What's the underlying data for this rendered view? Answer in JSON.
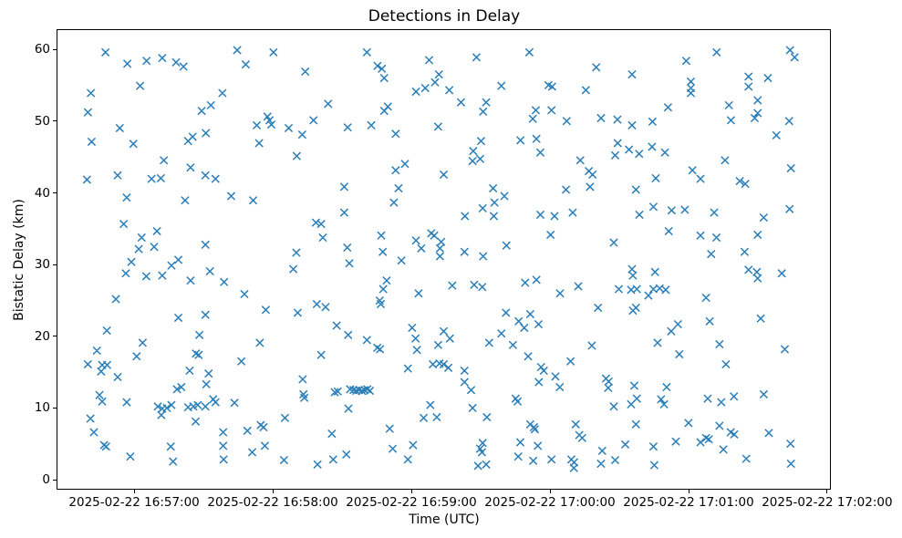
{
  "figure": {
    "title": "Detections in Delay",
    "xlabel": "Time (UTC)",
    "ylabel": "Bistatic Delay (km)"
  },
  "chart_data": {
    "type": "scatter",
    "title": "Detections in Delay",
    "xlabel": "Time (UTC)",
    "ylabel": "Bistatic Delay (km)",
    "marker": "x",
    "marker_color": "#1f77b4",
    "background": "#ffffff",
    "grid": false,
    "legend": null,
    "x_unit": "seconds after 2025-02-22 16:57:00 UTC",
    "xlim_s": [
      -33.2,
      301.6
    ],
    "ylim": [
      -1.4,
      62.7
    ],
    "x_ticks": [
      {
        "s": 0,
        "label": "2025-02-22 16:57:00"
      },
      {
        "s": 60,
        "label": "2025-02-22 16:58:00"
      },
      {
        "s": 120,
        "label": "2025-02-22 16:59:00"
      },
      {
        "s": 180,
        "label": "2025-02-22 17:00:00"
      },
      {
        "s": 240,
        "label": "2025-02-22 17:01:00"
      },
      {
        "s": 300,
        "label": "2025-02-22 17:02:00"
      }
    ],
    "y_ticks": [
      0,
      10,
      20,
      30,
      40,
      50,
      60
    ],
    "points": [
      [
        -12.4,
        59.6
      ],
      [
        -2.9,
        58.0
      ],
      [
        5.4,
        58.4
      ],
      [
        12.2,
        58.8
      ],
      [
        18.2,
        58.2
      ],
      [
        21.4,
        57.6
      ],
      [
        44.7,
        59.9
      ],
      [
        48.4,
        57.9
      ],
      [
        2.6,
        54.9
      ],
      [
        -18.7,
        53.9
      ],
      [
        38.3,
        53.9
      ],
      [
        -20.0,
        51.2
      ],
      [
        33.3,
        52.2
      ],
      [
        29.3,
        51.4
      ],
      [
        -6.2,
        49.0
      ],
      [
        31.1,
        48.3
      ],
      [
        23.4,
        47.2
      ],
      [
        25.4,
        47.8
      ],
      [
        -18.4,
        47.1
      ],
      [
        -0.3,
        46.8
      ],
      [
        12.9,
        44.5
      ],
      [
        24.5,
        43.5
      ],
      [
        -7.1,
        42.4
      ],
      [
        -20.4,
        41.8
      ],
      [
        7.6,
        41.9
      ],
      [
        11.6,
        42.0
      ],
      [
        30.9,
        42.4
      ],
      [
        35.3,
        41.9
      ],
      [
        60.4,
        59.6
      ],
      [
        100.9,
        59.6
      ],
      [
        74.2,
        56.9
      ],
      [
        105.5,
        57.7
      ],
      [
        107.4,
        57.3
      ],
      [
        108.4,
        56.0
      ],
      [
        127.9,
        58.5
      ],
      [
        132.1,
        56.5
      ],
      [
        130.4,
        55.4
      ],
      [
        126.2,
        54.6
      ],
      [
        122.2,
        54.1
      ],
      [
        84.1,
        52.4
      ],
      [
        110.0,
        52.0
      ],
      [
        108.4,
        51.4
      ],
      [
        57.8,
        50.6
      ],
      [
        58.7,
        50.1
      ],
      [
        53.2,
        49.4
      ],
      [
        59.5,
        49.5
      ],
      [
        77.8,
        50.1
      ],
      [
        67.0,
        49.0
      ],
      [
        92.6,
        49.1
      ],
      [
        102.8,
        49.4
      ],
      [
        72.9,
        48.1
      ],
      [
        113.4,
        48.2
      ],
      [
        131.8,
        49.2
      ],
      [
        54.2,
        46.9
      ],
      [
        70.5,
        45.1
      ],
      [
        117.4,
        44.0
      ],
      [
        113.4,
        43.1
      ],
      [
        148.4,
        58.9
      ],
      [
        171.3,
        59.6
      ],
      [
        200.3,
        57.5
      ],
      [
        215.8,
        56.5
      ],
      [
        136.6,
        54.3
      ],
      [
        159.2,
        54.9
      ],
      [
        179.6,
        55.0
      ],
      [
        181.2,
        54.8
      ],
      [
        195.8,
        54.3
      ],
      [
        141.7,
        52.6
      ],
      [
        152.6,
        52.6
      ],
      [
        151.3,
        51.3
      ],
      [
        174.1,
        51.5
      ],
      [
        180.9,
        51.5
      ],
      [
        172.8,
        50.3
      ],
      [
        187.5,
        50.0
      ],
      [
        202.4,
        50.4
      ],
      [
        209.5,
        50.2
      ],
      [
        215.8,
        49.4
      ],
      [
        150.4,
        47.2
      ],
      [
        167.5,
        47.3
      ],
      [
        174.4,
        47.5
      ],
      [
        147.0,
        45.8
      ],
      [
        150.0,
        44.7
      ],
      [
        146.7,
        44.4
      ],
      [
        176.1,
        45.6
      ],
      [
        209.6,
        46.9
      ],
      [
        214.5,
        46.0
      ],
      [
        208.5,
        45.2
      ],
      [
        193.4,
        44.5
      ],
      [
        197.1,
        43.0
      ],
      [
        198.7,
        42.5
      ],
      [
        134.2,
        42.5
      ],
      [
        252.5,
        59.6
      ],
      [
        284.3,
        59.9
      ],
      [
        286.3,
        58.9
      ],
      [
        239.3,
        58.4
      ],
      [
        266.3,
        56.2
      ],
      [
        274.7,
        56.0
      ],
      [
        266.3,
        54.8
      ],
      [
        241.3,
        55.5
      ],
      [
        241.3,
        54.6
      ],
      [
        241.3,
        53.9
      ],
      [
        270.3,
        52.9
      ],
      [
        231.4,
        51.9
      ],
      [
        257.8,
        52.2
      ],
      [
        270.3,
        51.1
      ],
      [
        269.0,
        50.4
      ],
      [
        224.7,
        49.9
      ],
      [
        258.7,
        50.1
      ],
      [
        283.9,
        50.0
      ],
      [
        278.4,
        48.0
      ],
      [
        224.5,
        46.4
      ],
      [
        218.9,
        45.4
      ],
      [
        230.1,
        45.6
      ],
      [
        256.1,
        44.5
      ],
      [
        284.7,
        43.4
      ],
      [
        242.0,
        43.1
      ],
      [
        226.1,
        42.0
      ],
      [
        245.5,
        41.9
      ],
      [
        262.5,
        41.6
      ],
      [
        264.9,
        41.2
      ],
      [
        -3.2,
        39.3
      ],
      [
        22.1,
        38.9
      ],
      [
        42.1,
        39.5
      ],
      [
        -4.5,
        35.6
      ],
      [
        3.3,
        33.7
      ],
      [
        9.9,
        34.6
      ],
      [
        2.0,
        32.1
      ],
      [
        8.7,
        32.4
      ],
      [
        30.9,
        32.7
      ],
      [
        -1.2,
        30.3
      ],
      [
        19.2,
        30.6
      ],
      [
        16.2,
        29.8
      ],
      [
        -3.6,
        28.7
      ],
      [
        5.3,
        28.3
      ],
      [
        12.2,
        28.4
      ],
      [
        24.5,
        27.7
      ],
      [
        32.9,
        29.0
      ],
      [
        39.0,
        27.5
      ],
      [
        47.8,
        25.8
      ],
      [
        -7.9,
        25.1
      ],
      [
        19.2,
        22.5
      ],
      [
        30.9,
        22.9
      ],
      [
        -11.8,
        20.7
      ],
      [
        91.1,
        40.8
      ],
      [
        114.6,
        40.6
      ],
      [
        51.6,
        38.9
      ],
      [
        112.6,
        38.6
      ],
      [
        91.1,
        37.2
      ],
      [
        78.8,
        35.8
      ],
      [
        81.1,
        35.6
      ],
      [
        81.8,
        33.7
      ],
      [
        107.1,
        34.0
      ],
      [
        128.8,
        34.3
      ],
      [
        130.1,
        34.0
      ],
      [
        122.2,
        33.3
      ],
      [
        133.1,
        33.1
      ],
      [
        124.5,
        32.2
      ],
      [
        70.3,
        31.6
      ],
      [
        92.4,
        32.3
      ],
      [
        107.8,
        31.7
      ],
      [
        132.6,
        32.2
      ],
      [
        132.6,
        31.1
      ],
      [
        115.9,
        30.5
      ],
      [
        93.3,
        30.1
      ],
      [
        69.0,
        29.3
      ],
      [
        109.5,
        27.7
      ],
      [
        108.0,
        26.5
      ],
      [
        123.3,
        25.9
      ],
      [
        106.5,
        24.9
      ],
      [
        106.9,
        24.4
      ],
      [
        57.1,
        23.6
      ],
      [
        79.2,
        24.4
      ],
      [
        83.0,
        24.0
      ],
      [
        70.9,
        23.2
      ],
      [
        87.8,
        21.4
      ],
      [
        120.5,
        21.1
      ],
      [
        92.8,
        20.1
      ],
      [
        155.6,
        40.6
      ],
      [
        160.5,
        39.5
      ],
      [
        187.2,
        40.4
      ],
      [
        197.6,
        40.8
      ],
      [
        151.1,
        37.8
      ],
      [
        156.2,
        38.6
      ],
      [
        143.4,
        36.7
      ],
      [
        155.9,
        36.7
      ],
      [
        176.1,
        36.9
      ],
      [
        182.2,
        36.7
      ],
      [
        190.1,
        37.2
      ],
      [
        180.5,
        34.1
      ],
      [
        207.9,
        33.0
      ],
      [
        161.4,
        32.6
      ],
      [
        143.2,
        31.7
      ],
      [
        151.3,
        31.1
      ],
      [
        215.8,
        29.3
      ],
      [
        216.2,
        28.4
      ],
      [
        137.9,
        27.0
      ],
      [
        147.4,
        27.1
      ],
      [
        150.9,
        26.8
      ],
      [
        169.5,
        27.4
      ],
      [
        174.4,
        27.8
      ],
      [
        184.6,
        25.9
      ],
      [
        192.5,
        26.9
      ],
      [
        210.1,
        26.5
      ],
      [
        215.4,
        26.4
      ],
      [
        201.1,
        23.9
      ],
      [
        216.2,
        23.5
      ],
      [
        161.2,
        23.2
      ],
      [
        166.7,
        22.0
      ],
      [
        171.7,
        23.0
      ],
      [
        169.1,
        21.1
      ],
      [
        175.3,
        21.6
      ],
      [
        159.2,
        20.3
      ],
      [
        134.2,
        20.6
      ],
      [
        217.5,
        40.4
      ],
      [
        225.1,
        38.0
      ],
      [
        219.0,
        36.9
      ],
      [
        233.0,
        37.5
      ],
      [
        238.7,
        37.6
      ],
      [
        251.4,
        37.2
      ],
      [
        272.9,
        36.5
      ],
      [
        284.1,
        37.7
      ],
      [
        231.7,
        34.6
      ],
      [
        245.5,
        34.0
      ],
      [
        252.4,
        33.7
      ],
      [
        270.3,
        34.1
      ],
      [
        250.1,
        31.4
      ],
      [
        264.6,
        31.7
      ],
      [
        225.8,
        28.9
      ],
      [
        266.3,
        29.2
      ],
      [
        269.9,
        28.9
      ],
      [
        270.3,
        28.0
      ],
      [
        280.7,
        28.7
      ],
      [
        217.9,
        26.5
      ],
      [
        225.1,
        26.5
      ],
      [
        227.8,
        26.6
      ],
      [
        222.9,
        25.6
      ],
      [
        230.4,
        26.4
      ],
      [
        247.9,
        25.3
      ],
      [
        217.5,
        23.9
      ],
      [
        249.5,
        22.0
      ],
      [
        271.6,
        22.4
      ],
      [
        235.7,
        21.6
      ],
      [
        232.8,
        20.6
      ],
      [
        28.3,
        20.1
      ],
      [
        3.7,
        19.0
      ],
      [
        -16.1,
        17.9
      ],
      [
        1.1,
        17.1
      ],
      [
        26.8,
        17.5
      ],
      [
        28.0,
        17.3
      ],
      [
        -20.0,
        16.0
      ],
      [
        -13.8,
        15.9
      ],
      [
        -11.7,
        15.9
      ],
      [
        -14.3,
        15.0
      ],
      [
        46.5,
        16.4
      ],
      [
        -7.1,
        14.2
      ],
      [
        24.1,
        15.1
      ],
      [
        32.3,
        14.7
      ],
      [
        31.3,
        13.2
      ],
      [
        18.6,
        12.5
      ],
      [
        20.5,
        12.8
      ],
      [
        -15.0,
        11.7
      ],
      [
        -13.8,
        10.8
      ],
      [
        -3.2,
        10.7
      ],
      [
        10.3,
        10.1
      ],
      [
        12.2,
        9.8
      ],
      [
        14.2,
        9.9
      ],
      [
        16.2,
        10.3
      ],
      [
        23.4,
        10.0
      ],
      [
        25.7,
        10.1
      ],
      [
        27.6,
        10.3
      ],
      [
        30.9,
        10.1
      ],
      [
        34.3,
        11.1
      ],
      [
        35.3,
        10.7
      ],
      [
        43.5,
        10.6
      ],
      [
        11.8,
        8.9
      ],
      [
        -18.9,
        8.4
      ],
      [
        26.7,
        8.0
      ],
      [
        -17.4,
        6.5
      ],
      [
        38.6,
        6.5
      ],
      [
        49.1,
        6.7
      ],
      [
        -13.0,
        4.7
      ],
      [
        -12.1,
        4.5
      ],
      [
        15.9,
        4.5
      ],
      [
        38.6,
        4.6
      ],
      [
        -1.6,
        3.1
      ],
      [
        16.9,
        2.4
      ],
      [
        38.8,
        2.7
      ],
      [
        54.5,
        19.0
      ],
      [
        100.9,
        19.4
      ],
      [
        105.4,
        18.3
      ],
      [
        106.6,
        18.1
      ],
      [
        122.0,
        19.6
      ],
      [
        122.6,
        18.0
      ],
      [
        131.8,
        18.7
      ],
      [
        81.1,
        17.3
      ],
      [
        118.7,
        15.4
      ],
      [
        129.5,
        16.0
      ],
      [
        132.4,
        16.1
      ],
      [
        73.1,
        13.9
      ],
      [
        73.4,
        11.8
      ],
      [
        73.8,
        11.3
      ],
      [
        87.0,
        12.1
      ],
      [
        88.3,
        12.2
      ],
      [
        93.6,
        12.5
      ],
      [
        95.1,
        12.4
      ],
      [
        96.3,
        12.3
      ],
      [
        97.5,
        12.4
      ],
      [
        98.7,
        12.3
      ],
      [
        99.9,
        12.4
      ],
      [
        101.1,
        12.5
      ],
      [
        102.2,
        12.3
      ],
      [
        92.9,
        9.8
      ],
      [
        128.4,
        10.3
      ],
      [
        125.5,
        8.5
      ],
      [
        131.2,
        8.6
      ],
      [
        65.4,
        8.5
      ],
      [
        54.9,
        7.5
      ],
      [
        56.1,
        7.2
      ],
      [
        85.7,
        6.3
      ],
      [
        110.8,
        7.0
      ],
      [
        56.7,
        4.6
      ],
      [
        51.2,
        3.7
      ],
      [
        112.1,
        4.2
      ],
      [
        120.9,
        4.7
      ],
      [
        118.7,
        2.7
      ],
      [
        65.0,
        2.6
      ],
      [
        79.5,
        2.0
      ],
      [
        86.3,
        2.7
      ],
      [
        92.0,
        3.4
      ],
      [
        136.9,
        19.6
      ],
      [
        153.9,
        19.0
      ],
      [
        164.2,
        18.7
      ],
      [
        198.4,
        18.6
      ],
      [
        170.8,
        17.1
      ],
      [
        134.2,
        16.0
      ],
      [
        136.2,
        15.5
      ],
      [
        143.2,
        15.1
      ],
      [
        189.2,
        16.4
      ],
      [
        176.4,
        15.6
      ],
      [
        177.6,
        15.1
      ],
      [
        175.4,
        13.5
      ],
      [
        182.6,
        14.3
      ],
      [
        143.2,
        13.5
      ],
      [
        146.1,
        12.4
      ],
      [
        184.5,
        12.8
      ],
      [
        204.5,
        14.0
      ],
      [
        205.7,
        13.6
      ],
      [
        205.5,
        12.7
      ],
      [
        216.8,
        13.0
      ],
      [
        165.4,
        11.2
      ],
      [
        166.2,
        10.8
      ],
      [
        146.7,
        9.9
      ],
      [
        207.9,
        10.1
      ],
      [
        215.4,
        10.4
      ],
      [
        152.9,
        8.6
      ],
      [
        171.7,
        7.6
      ],
      [
        173.3,
        7.2
      ],
      [
        173.7,
        6.9
      ],
      [
        191.4,
        7.6
      ],
      [
        193.0,
        6.1
      ],
      [
        194.2,
        5.7
      ],
      [
        167.4,
        5.1
      ],
      [
        175.0,
        4.6
      ],
      [
        151.1,
        5.0
      ],
      [
        150.0,
        4.2
      ],
      [
        150.8,
        3.7
      ],
      [
        166.5,
        3.1
      ],
      [
        173.0,
        2.5
      ],
      [
        180.9,
        2.7
      ],
      [
        149.1,
        1.8
      ],
      [
        152.6,
        2.0
      ],
      [
        189.5,
        2.7
      ],
      [
        190.7,
        2.3
      ],
      [
        190.6,
        1.5
      ],
      [
        202.9,
        3.9
      ],
      [
        212.9,
        4.8
      ],
      [
        202.4,
        2.1
      ],
      [
        208.5,
        2.6
      ],
      [
        226.9,
        19.0
      ],
      [
        253.7,
        18.8
      ],
      [
        236.3,
        17.4
      ],
      [
        282.0,
        18.1
      ],
      [
        256.5,
        16.0
      ],
      [
        230.8,
        12.8
      ],
      [
        217.9,
        11.2
      ],
      [
        228.4,
        11.1
      ],
      [
        229.7,
        10.4
      ],
      [
        248.6,
        11.2
      ],
      [
        254.5,
        10.7
      ],
      [
        260.0,
        11.5
      ],
      [
        272.9,
        11.8
      ],
      [
        217.5,
        7.6
      ],
      [
        240.3,
        7.8
      ],
      [
        253.7,
        7.4
      ],
      [
        258.6,
        6.5
      ],
      [
        260.1,
        6.2
      ],
      [
        275.1,
        6.4
      ],
      [
        234.8,
        5.2
      ],
      [
        225.1,
        4.5
      ],
      [
        245.5,
        5.1
      ],
      [
        247.9,
        5.7
      ],
      [
        249.1,
        5.5
      ],
      [
        255.4,
        4.1
      ],
      [
        265.3,
        2.8
      ],
      [
        225.5,
        1.9
      ],
      [
        284.7,
        2.1
      ],
      [
        284.5,
        4.9
      ]
    ]
  }
}
